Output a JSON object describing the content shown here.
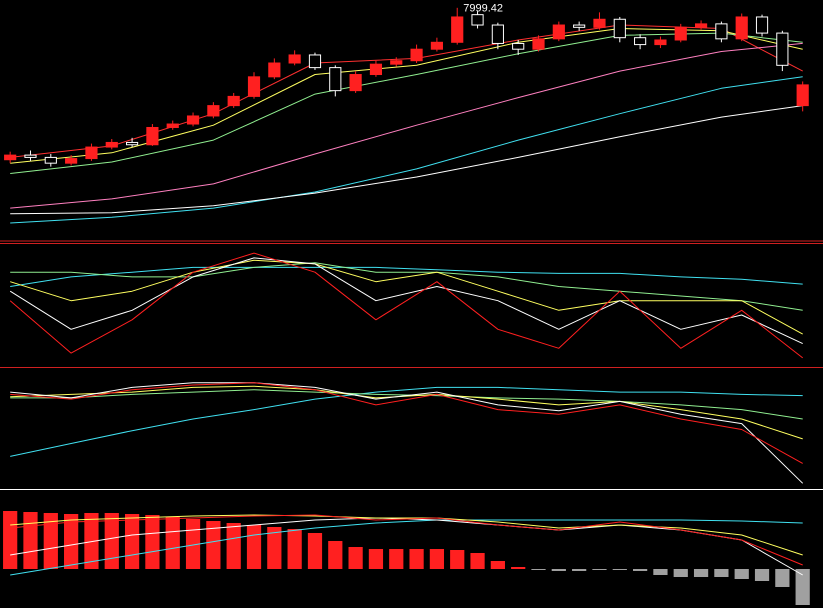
{
  "chart_data": [
    {
      "type": "candlestick",
      "xlim": [
        -0.5,
        40
      ],
      "ylim": [
        6000,
        8050
      ],
      "up_color": "#ff2020",
      "down_color": "#ffffff",
      "open": [
        6680,
        6720,
        6700,
        6650,
        6690,
        6790,
        6830,
        6810,
        6960,
        6990,
        7060,
        7150,
        7230,
        7400,
        7520,
        7590,
        7480,
        7280,
        7420,
        7510,
        7540,
        7640,
        7700,
        7940,
        7850,
        7690,
        7640,
        7730,
        7850,
        7830,
        7900,
        7740,
        7680,
        7720,
        7830,
        7860,
        7730,
        7920,
        7780,
        7150
      ],
      "high": [
        6750,
        6760,
        6730,
        6720,
        6820,
        6860,
        6870,
        6990,
        7020,
        7090,
        7180,
        7260,
        7440,
        7560,
        7630,
        7610,
        7500,
        7450,
        7540,
        7570,
        7680,
        7740,
        7999.42,
        7970,
        7870,
        7720,
        7760,
        7880,
        7880,
        7960,
        7920,
        7770,
        7750,
        7860,
        7890,
        7880,
        7950,
        7940,
        7800,
        7360
      ],
      "low": [
        6650,
        6670,
        6620,
        6630,
        6670,
        6770,
        6790,
        6800,
        6940,
        6970,
        7040,
        7130,
        7210,
        7380,
        7500,
        7460,
        7230,
        7260,
        7400,
        7490,
        7520,
        7620,
        7680,
        7820,
        7640,
        7590,
        7620,
        7710,
        7800,
        7810,
        7700,
        7640,
        7650,
        7700,
        7810,
        7700,
        7710,
        7750,
        7450,
        7100
      ],
      "close": [
        6720,
        6700,
        6650,
        6690,
        6790,
        6830,
        6810,
        6960,
        6990,
        7060,
        7150,
        7230,
        7400,
        7520,
        7590,
        7480,
        7280,
        7420,
        7510,
        7540,
        7640,
        7700,
        7920,
        7850,
        7690,
        7640,
        7730,
        7850,
        7830,
        7900,
        7740,
        7680,
        7720,
        7830,
        7860,
        7730,
        7920,
        7780,
        7500,
        7330
      ],
      "series": [
        {
          "color": "#ff3030",
          "x": [
            0,
            5,
            10,
            15,
            20,
            25,
            30,
            35,
            39
          ],
          "values": [
            6700,
            6800,
            7080,
            7520,
            7560,
            7720,
            7850,
            7820,
            7450
          ]
        },
        {
          "color": "#ffff60",
          "x": [
            0,
            5,
            10,
            15,
            20,
            25,
            30,
            35,
            39
          ],
          "values": [
            6650,
            6740,
            6980,
            7420,
            7500,
            7700,
            7820,
            7800,
            7640
          ]
        },
        {
          "color": "#90ee90",
          "x": [
            0,
            5,
            10,
            15,
            20,
            25,
            30,
            35,
            39
          ],
          "values": [
            6560,
            6660,
            6850,
            7250,
            7420,
            7600,
            7760,
            7780,
            7700
          ]
        },
        {
          "color": "#ff80c0",
          "x": [
            0,
            5,
            10,
            15,
            20,
            25,
            30,
            35,
            39
          ],
          "values": [
            6260,
            6340,
            6470,
            6730,
            6980,
            7220,
            7450,
            7620,
            7690
          ]
        },
        {
          "color": "#40e0f0",
          "x": [
            0,
            5,
            10,
            15,
            20,
            25,
            30,
            35,
            39
          ],
          "values": [
            6130,
            6180,
            6260,
            6400,
            6600,
            6850,
            7080,
            7300,
            7400
          ]
        },
        {
          "color": "#ffffff",
          "x": [
            0,
            5,
            10,
            15,
            20,
            25,
            30,
            35,
            39
          ],
          "values": [
            6210,
            6220,
            6280,
            6390,
            6530,
            6700,
            6880,
            7050,
            7150
          ]
        }
      ]
    },
    {
      "type": "line",
      "xlim": [
        -0.5,
        40
      ],
      "ylim": [
        0,
        100
      ],
      "series": [
        {
          "color": "#40e0f0",
          "x": [
            0,
            3,
            6,
            9,
            12,
            15,
            18,
            21,
            24,
            27,
            30,
            33,
            36,
            39
          ],
          "values": [
            66,
            74,
            78,
            82,
            82,
            82,
            82,
            80,
            78,
            77,
            77,
            74,
            72,
            68
          ]
        },
        {
          "color": "#90ee90",
          "x": [
            0,
            3,
            6,
            9,
            12,
            15,
            18,
            21,
            24,
            27,
            30,
            33,
            36,
            39
          ],
          "values": [
            78,
            78,
            74,
            74,
            82,
            86,
            78,
            78,
            74,
            66,
            62,
            58,
            54,
            46
          ]
        },
        {
          "color": "#ffff60",
          "x": [
            0,
            3,
            6,
            9,
            12,
            15,
            18,
            21,
            24,
            27,
            30,
            33,
            36,
            39
          ],
          "values": [
            70,
            54,
            62,
            78,
            88,
            85,
            70,
            78,
            62,
            46,
            54,
            54,
            54,
            26
          ]
        },
        {
          "color": "#ffffff",
          "x": [
            0,
            3,
            6,
            9,
            12,
            15,
            18,
            21,
            24,
            27,
            30,
            33,
            36,
            39
          ],
          "values": [
            62,
            30,
            46,
            74,
            90,
            85,
            54,
            66,
            54,
            30,
            54,
            30,
            42,
            18
          ]
        },
        {
          "color": "#ff2020",
          "x": [
            0,
            3,
            6,
            9,
            12,
            15,
            18,
            21,
            24,
            27,
            30,
            33,
            36,
            39
          ],
          "values": [
            54,
            10,
            38,
            78,
            94,
            78,
            38,
            70,
            30,
            14,
            62,
            14,
            46,
            6
          ]
        }
      ]
    },
    {
      "type": "line",
      "xlim": [
        -0.5,
        40
      ],
      "ylim": [
        0,
        100
      ],
      "series": [
        {
          "color": "#40e0f0",
          "x": [
            0,
            3,
            6,
            9,
            12,
            15,
            18,
            21,
            24,
            27,
            30,
            33,
            36,
            39
          ],
          "values": [
            27,
            38,
            49,
            59,
            67,
            76,
            82,
            86,
            86,
            84,
            82,
            82,
            80,
            79
          ]
        },
        {
          "color": "#90ee90",
          "x": [
            0,
            3,
            6,
            9,
            12,
            15,
            18,
            21,
            24,
            27,
            30,
            33,
            36,
            39
          ],
          "values": [
            77,
            77,
            80,
            82,
            84,
            82,
            80,
            79,
            77,
            76,
            74,
            71,
            67,
            59
          ]
        },
        {
          "color": "#ffff60",
          "x": [
            0,
            3,
            6,
            9,
            12,
            15,
            18,
            21,
            24,
            27,
            30,
            33,
            36,
            39
          ],
          "values": [
            78,
            80,
            82,
            86,
            87,
            84,
            77,
            80,
            76,
            71,
            74,
            67,
            59,
            42
          ]
        },
        {
          "color": "#ffffff",
          "x": [
            0,
            3,
            6,
            9,
            12,
            15,
            18,
            21,
            24,
            27,
            30,
            33,
            36,
            39
          ],
          "values": [
            82,
            77,
            86,
            90,
            90,
            86,
            76,
            82,
            71,
            66,
            74,
            63,
            55,
            4
          ]
        },
        {
          "color": "#ff2020",
          "x": [
            0,
            3,
            6,
            9,
            12,
            15,
            18,
            21,
            24,
            27,
            30,
            33,
            36,
            39
          ],
          "values": [
            80,
            76,
            84,
            88,
            90,
            84,
            71,
            80,
            67,
            63,
            71,
            59,
            50,
            21
          ]
        }
      ]
    },
    {
      "type": "bar",
      "xlim": [
        -0.5,
        40
      ],
      "ylim": [
        -39,
        76
      ],
      "pos_color": "#ff2020",
      "neg_color": "#a0a0a0",
      "values": [
        58,
        57,
        56,
        55,
        56,
        56,
        55,
        54,
        52,
        50,
        48,
        46,
        44,
        42,
        40,
        36,
        28,
        22,
        20,
        20,
        20,
        20,
        19,
        16,
        8,
        2,
        -1,
        -2,
        -2,
        -1,
        -1,
        -2,
        -6,
        -8,
        -8,
        -8,
        -10,
        -12,
        -18,
        -36
      ],
      "series": [
        {
          "color": "#40e0f0",
          "x": [
            0,
            3,
            6,
            9,
            12,
            15,
            18,
            21,
            24,
            27,
            30,
            33,
            36,
            39
          ],
          "values": [
            -6,
            4,
            14,
            24,
            34,
            41,
            46,
            49,
            49,
            49,
            49,
            49,
            48,
            46
          ]
        },
        {
          "color": "#ffffff",
          "x": [
            0,
            3,
            6,
            9,
            12,
            15,
            18,
            21,
            24,
            27,
            30,
            33,
            36,
            39
          ],
          "values": [
            14,
            24,
            34,
            39,
            44,
            49,
            51,
            49,
            44,
            39,
            44,
            39,
            29,
            -6
          ]
        },
        {
          "color": "#ffff60",
          "x": [
            0,
            3,
            6,
            9,
            12,
            15,
            18,
            21,
            24,
            27,
            30,
            33,
            36,
            39
          ],
          "values": [
            44,
            49,
            51,
            53,
            54,
            53,
            51,
            51,
            47,
            41,
            44,
            41,
            34,
            14
          ]
        },
        {
          "color": "#ff2020",
          "x": [
            0,
            3,
            6,
            9,
            12,
            15,
            18,
            21,
            24,
            27,
            30,
            33,
            36,
            39
          ],
          "values": [
            41,
            47,
            49,
            51,
            53,
            54,
            49,
            51,
            44,
            39,
            47,
            39,
            29,
            4
          ]
        }
      ]
    }
  ]
}
